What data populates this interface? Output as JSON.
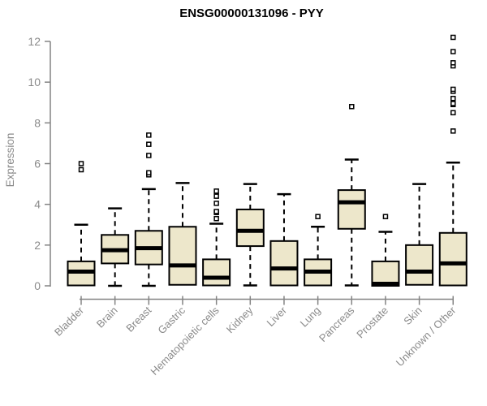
{
  "title": "ENSG00000131096 - PYY",
  "y_axis_label": "Expression",
  "chart_data": {
    "type": "boxplot",
    "title": "ENSG00000131096 - PYY",
    "xlabel": "",
    "ylabel": "Expression",
    "ylim": [
      0,
      12
    ],
    "y_ticks": [
      0,
      2,
      4,
      6,
      8,
      10,
      12
    ],
    "grid": false,
    "legend": "none",
    "categories": [
      "Bladder",
      "Brain",
      "Breast",
      "Gastric",
      "Hematopoietic cells",
      "Kidney",
      "Liver",
      "Lung",
      "Pancreas",
      "Prostate",
      "Skin",
      "Unknown / Other"
    ],
    "series": [
      {
        "name": "Bladder",
        "whisker_low": 0,
        "q1": 0.02,
        "median": 0.7,
        "q3": 1.2,
        "whisker_high": 3.0,
        "outliers": [
          5.7,
          6.0
        ]
      },
      {
        "name": "Brain",
        "whisker_low": 0,
        "q1": 1.1,
        "median": 1.75,
        "q3": 2.5,
        "whisker_high": 3.8,
        "outliers": []
      },
      {
        "name": "Breast",
        "whisker_low": 0,
        "q1": 1.05,
        "median": 1.85,
        "q3": 2.7,
        "whisker_high": 4.75,
        "outliers": [
          5.45,
          5.55,
          6.4,
          6.95,
          7.4
        ]
      },
      {
        "name": "Gastric",
        "whisker_low": 0,
        "q1": 0.05,
        "median": 1.0,
        "q3": 2.9,
        "whisker_high": 5.05,
        "outliers": []
      },
      {
        "name": "Hematopoietic cells",
        "whisker_low": 0,
        "q1": 0.02,
        "median": 0.4,
        "q3": 1.3,
        "whisker_high": 3.05,
        "outliers": [
          3.3,
          3.6,
          3.65,
          4.05,
          4.4,
          4.65
        ]
      },
      {
        "name": "Kidney",
        "whisker_low": 0.02,
        "q1": 1.95,
        "median": 2.7,
        "q3": 3.75,
        "whisker_high": 5.0,
        "outliers": []
      },
      {
        "name": "Liver",
        "whisker_low": 0,
        "q1": 0.02,
        "median": 0.85,
        "q3": 2.2,
        "whisker_high": 4.5,
        "outliers": []
      },
      {
        "name": "Lung",
        "whisker_low": 0,
        "q1": 0.02,
        "median": 0.7,
        "q3": 1.3,
        "whisker_high": 2.9,
        "outliers": [
          3.4
        ]
      },
      {
        "name": "Pancreas",
        "whisker_low": 0.02,
        "q1": 2.8,
        "median": 4.1,
        "q3": 4.7,
        "whisker_high": 6.2,
        "outliers": [
          8.8
        ]
      },
      {
        "name": "Prostate",
        "whisker_low": 0,
        "q1": 0.0,
        "median": 0.1,
        "q3": 1.2,
        "whisker_high": 2.65,
        "outliers": [
          3.4
        ]
      },
      {
        "name": "Skin",
        "whisker_low": 0,
        "q1": 0.05,
        "median": 0.7,
        "q3": 2.0,
        "whisker_high": 5.0,
        "outliers": []
      },
      {
        "name": "Unknown / Other",
        "whisker_low": 0,
        "q1": 0.02,
        "median": 1.1,
        "q3": 2.6,
        "whisker_high": 6.05,
        "outliers": [
          7.6,
          8.5,
          8.9,
          8.95,
          9.2,
          9.55,
          9.65,
          10.8,
          10.95,
          11.5,
          12.2
        ]
      }
    ],
    "colors": {
      "box_fill": "#EDE7CB",
      "box_border": "#000000",
      "median_line": "#000000",
      "whisker": "#000000",
      "outlier_stroke": "#000000",
      "outlier_fill": "#FFFFFF",
      "axis_line": "#848484",
      "tick_text": "#8A8A8A",
      "title_text": "#000000",
      "background": "#FFFFFF"
    }
  }
}
